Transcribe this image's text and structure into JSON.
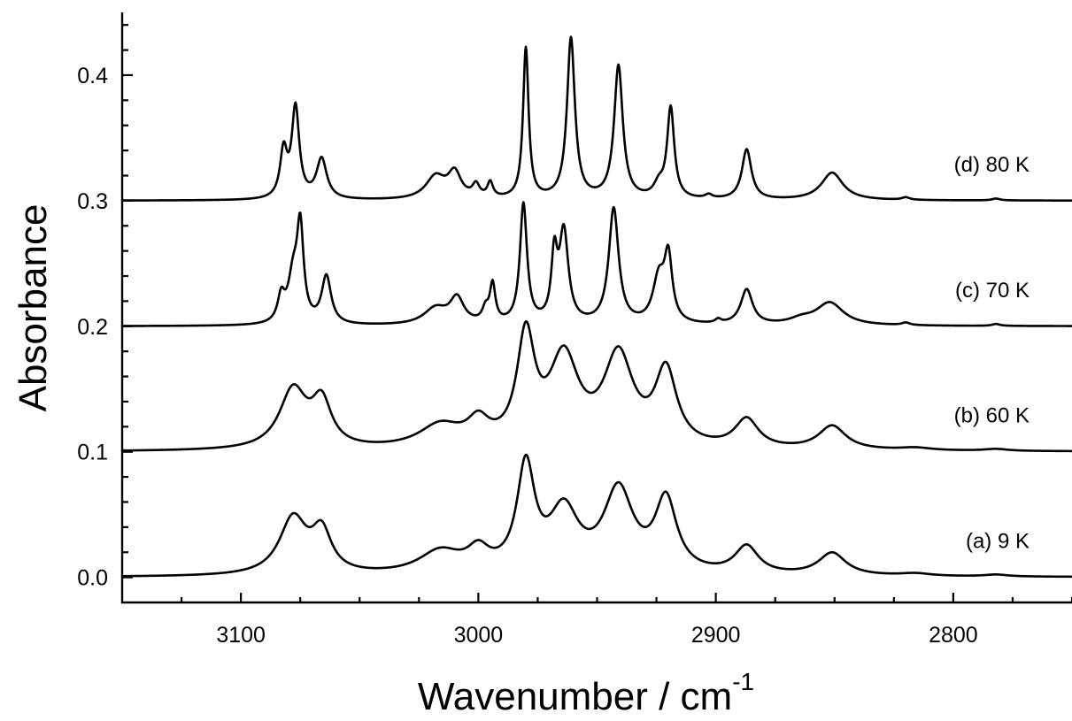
{
  "chart_data": {
    "type": "line",
    "xlabel": "Wavenumber / cm",
    "xlabel_superscript": "-1",
    "ylabel": "Absorbance",
    "xlim": [
      3150,
      2750
    ],
    "ylim": [
      -0.02,
      0.45
    ],
    "x_reversed": true,
    "x_ticks": [
      3100,
      3000,
      2900,
      2800
    ],
    "x_tick_labels": [
      "3100",
      "3000",
      "2900",
      "2800"
    ],
    "x_minor_step": 25,
    "y_ticks": [
      0.0,
      0.1,
      0.2,
      0.3,
      0.4
    ],
    "y_tick_labels": [
      "0.0",
      "0.1",
      "0.2",
      "0.3",
      "0.4"
    ],
    "y_minor_step": 0.02,
    "grid": false,
    "legend": "none",
    "series": [
      {
        "name": "(a) 9 K",
        "baseline": 0.0,
        "peaks": [
          [
            3078,
            0.045,
            7
          ],
          [
            3066,
            0.032,
            5
          ],
          [
            3016,
            0.018,
            11
          ],
          [
            3000,
            0.016,
            5.5
          ],
          [
            2980,
            0.083,
            4.5
          ],
          [
            2964,
            0.048,
            7.5
          ],
          [
            2941,
            0.065,
            7.5
          ],
          [
            2921,
            0.057,
            5.5
          ],
          [
            2887,
            0.022,
            6
          ],
          [
            2851,
            0.018,
            7
          ],
          [
            2816,
            0.002,
            8
          ],
          [
            2782,
            0.0015,
            6
          ]
        ]
      },
      {
        "name": "(b) 60 K",
        "baseline": 0.1,
        "peaks": [
          [
            3078,
            0.047,
            7
          ],
          [
            3066,
            0.035,
            5
          ],
          [
            3016,
            0.018,
            11
          ],
          [
            3000,
            0.018,
            5.5
          ],
          [
            2980,
            0.085,
            4.5
          ],
          [
            2964,
            0.069,
            7.5
          ],
          [
            2941,
            0.071,
            7.5
          ],
          [
            2921,
            0.059,
            5.5
          ],
          [
            2887,
            0.023,
            6
          ],
          [
            2851,
            0.019,
            7
          ],
          [
            2816,
            0.002,
            8
          ],
          [
            2782,
            0.0015,
            6
          ]
        ]
      },
      {
        "name": "(c) 70 K",
        "baseline": 0.2,
        "peaks": [
          [
            3083,
            0.02,
            1.8
          ],
          [
            3078,
            0.035,
            2.5
          ],
          [
            3075,
            0.073,
            1.7
          ],
          [
            3064,
            0.038,
            2.4
          ],
          [
            3018,
            0.013,
            6
          ],
          [
            3009,
            0.02,
            3.5
          ],
          [
            2997,
            0.01,
            1.6
          ],
          [
            2994,
            0.03,
            1.4
          ],
          [
            2981,
            0.095,
            1.8
          ],
          [
            2968,
            0.05,
            1.5
          ],
          [
            2964,
            0.072,
            2.3
          ],
          [
            2943,
            0.092,
            2.5
          ],
          [
            2924,
            0.035,
            3
          ],
          [
            2920,
            0.05,
            2
          ],
          [
            2899,
            0.003,
            1.5
          ],
          [
            2887,
            0.028,
            3
          ],
          [
            2864,
            0.004,
            6
          ],
          [
            2852,
            0.018,
            7
          ],
          [
            2820,
            0.002,
            2
          ],
          [
            2782,
            0.0015,
            2
          ]
        ]
      },
      {
        "name": "(d) 80 K",
        "baseline": 0.3,
        "peaks": [
          [
            3082,
            0.037,
            1.8
          ],
          [
            3077,
            0.072,
            1.9
          ],
          [
            3066,
            0.032,
            2.6
          ],
          [
            3018,
            0.018,
            5
          ],
          [
            3010,
            0.02,
            3.3
          ],
          [
            3001,
            0.01,
            1.8
          ],
          [
            2995,
            0.012,
            1.4
          ],
          [
            2980,
            0.12,
            1.4
          ],
          [
            2961,
            0.128,
            2
          ],
          [
            2941,
            0.106,
            2.2
          ],
          [
            2924,
            0.01,
            2.5
          ],
          [
            2919,
            0.072,
            1.8
          ],
          [
            2903,
            0.003,
            1.8
          ],
          [
            2887,
            0.04,
            2.4
          ],
          [
            2851,
            0.022,
            5.5
          ],
          [
            2820,
            0.002,
            2
          ],
          [
            2782,
            0.0015,
            2
          ]
        ]
      }
    ]
  }
}
